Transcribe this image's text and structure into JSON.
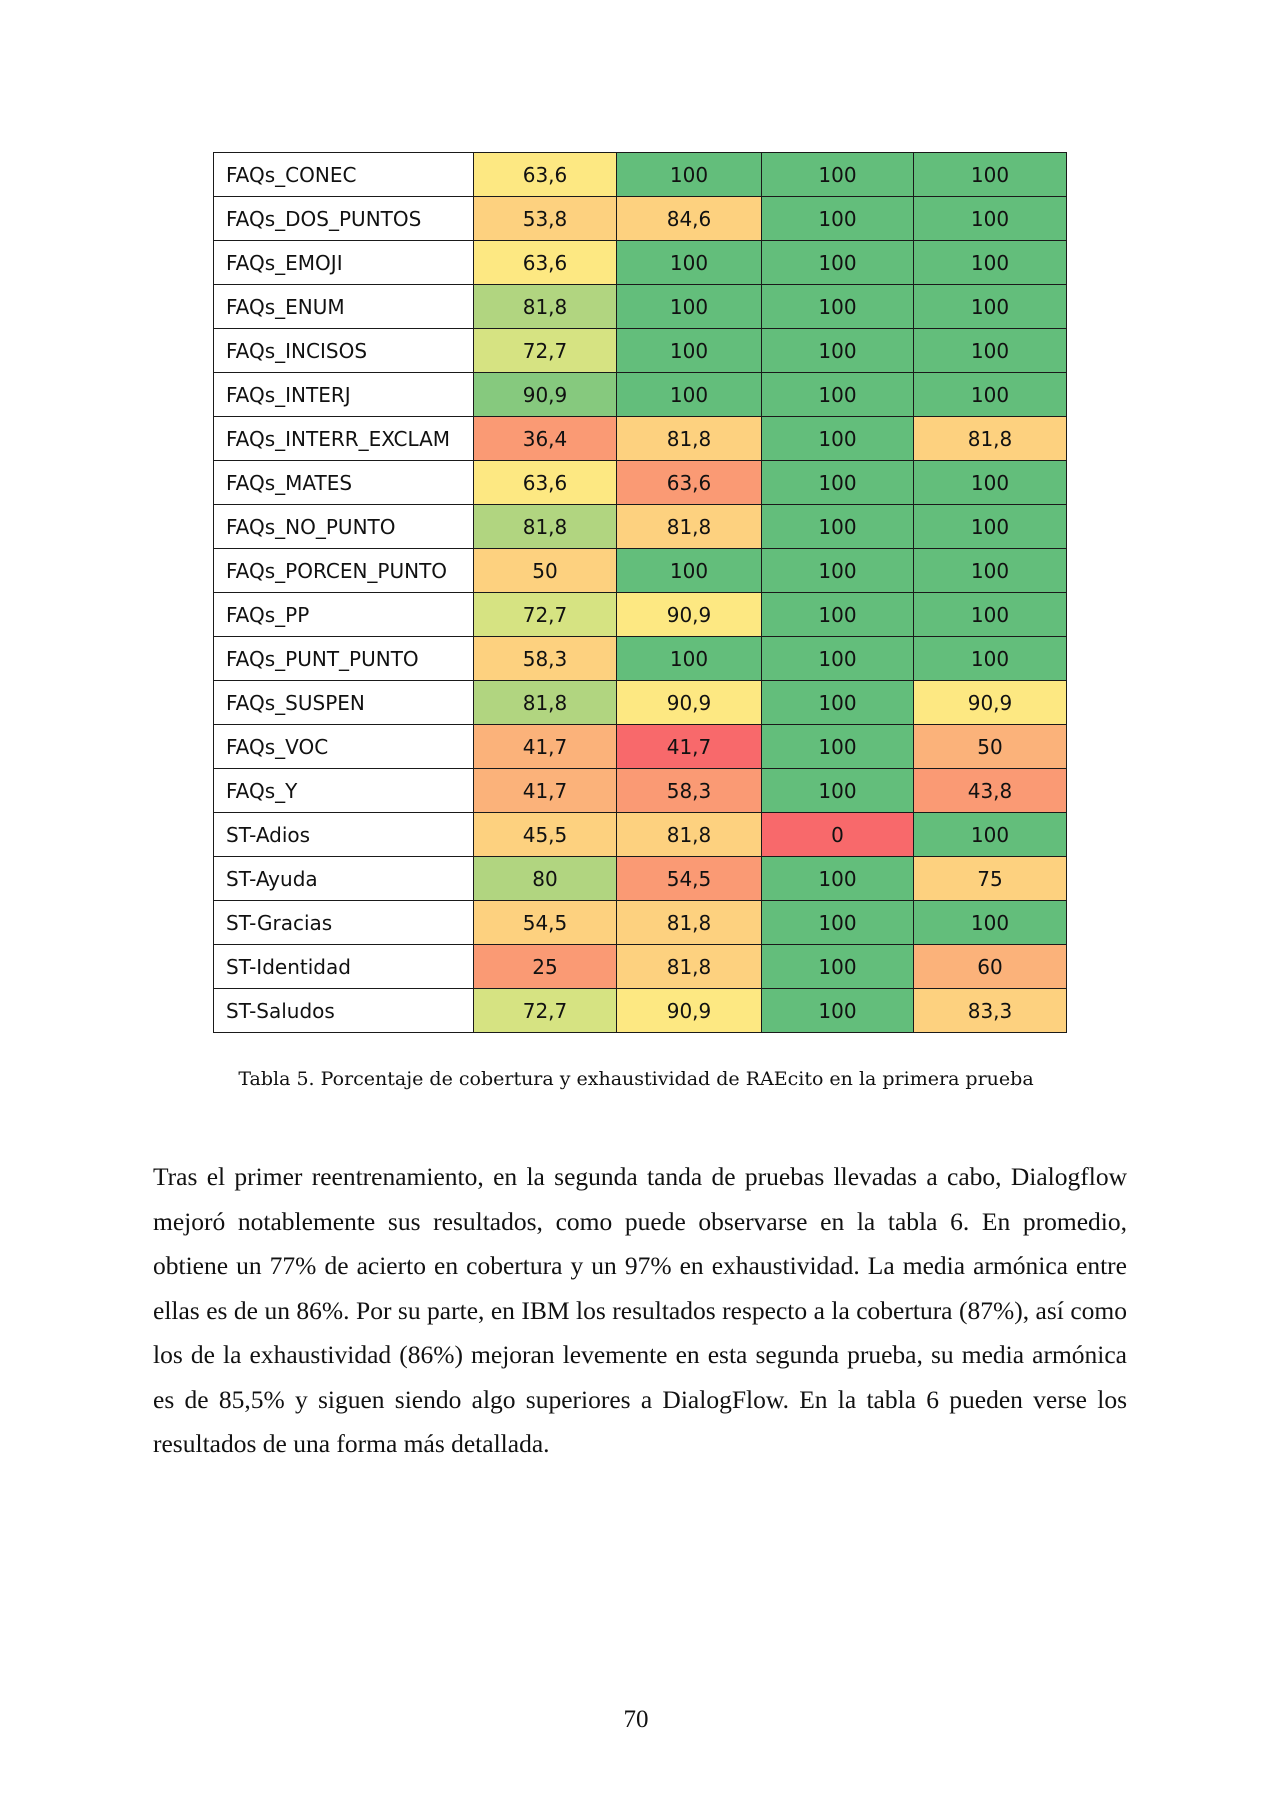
{
  "table": {
    "rows": [
      {
        "label": "FAQs_CONEC",
        "values": [
          "63,6",
          "100",
          "100",
          "100"
        ]
      },
      {
        "label": "FAQs_DOS_PUNTOS",
        "values": [
          "53,8",
          "84,6",
          "100",
          "100"
        ]
      },
      {
        "label": "FAQs_EMOJI",
        "values": [
          "63,6",
          "100",
          "100",
          "100"
        ]
      },
      {
        "label": "FAQs_ENUM",
        "values": [
          "81,8",
          "100",
          "100",
          "100"
        ]
      },
      {
        "label": "FAQs_INCISOS",
        "values": [
          "72,7",
          "100",
          "100",
          "100"
        ]
      },
      {
        "label": "FAQs_INTERJ",
        "values": [
          "90,9",
          "100",
          "100",
          "100"
        ]
      },
      {
        "label": "FAQs_INTERR_EXCLAM",
        "values": [
          "36,4",
          "81,8",
          "100",
          "81,8"
        ]
      },
      {
        "label": "FAQs_MATES",
        "values": [
          "63,6",
          "63,6",
          "100",
          "100"
        ]
      },
      {
        "label": "FAQs_NO_PUNTO",
        "values": [
          "81,8",
          "81,8",
          "100",
          "100"
        ]
      },
      {
        "label": "FAQs_PORCEN_PUNTO",
        "values": [
          "50",
          "100",
          "100",
          "100"
        ]
      },
      {
        "label": "FAQs_PP",
        "values": [
          "72,7",
          "90,9",
          "100",
          "100"
        ]
      },
      {
        "label": "FAQs_PUNT_PUNTO",
        "values": [
          "58,3",
          "100",
          "100",
          "100"
        ]
      },
      {
        "label": "FAQs_SUSPEN",
        "values": [
          "81,8",
          "90,9",
          "100",
          "90,9"
        ]
      },
      {
        "label": "FAQs_VOC",
        "values": [
          "41,7",
          "41,7",
          "100",
          "50"
        ]
      },
      {
        "label": "FAQs_Y",
        "values": [
          "41,7",
          "58,3",
          "100",
          "43,8"
        ]
      },
      {
        "label": "ST-Adios",
        "values": [
          "45,5",
          "81,8",
          "0",
          "100"
        ]
      },
      {
        "label": "ST-Ayuda",
        "values": [
          "80",
          "54,5",
          "100",
          "75"
        ]
      },
      {
        "label": "ST-Gracias",
        "values": [
          "54,5",
          "81,8",
          "100",
          "100"
        ]
      },
      {
        "label": "ST-Identidad",
        "values": [
          "25",
          "81,8",
          "100",
          "60"
        ]
      },
      {
        "label": "ST-Saludos",
        "values": [
          "72,7",
          "90,9",
          "100",
          "83,3"
        ]
      }
    ],
    "colors": {
      "green": "#63be7b",
      "mid_green": "#86c97e",
      "light_green": "#b1d580",
      "yellow_green": "#d6e382",
      "yellow": "#fde882",
      "light_orange": "#fdd17f",
      "orange": "#fbb27a",
      "salmon": "#fa9a74",
      "red": "#f8696b"
    }
  },
  "caption": "Tabla 5. Porcentaje de cobertura y exhaustividad de RAEcito en la primera prueba",
  "paragraph": "Tras el primer reentrenamiento, en la segunda tanda de pruebas llevadas a cabo, Dialogflow mejoró notablemente sus resultados, como puede observarse en la tabla 6. En promedio, obtiene un 77% de acierto en cobertura y un 97% en exhaustividad. La media armónica entre ellas es de un 86%. Por su parte, en IBM los resultados respecto a la cobertura (87%), así como los de la exhaustividad (86%) mejoran levemente en esta segunda prueba, su media armónica es de 85,5% y siguen siendo algo superiores a DialogFlow. En la tabla 6 pueden verse los resultados de una forma más detallada.",
  "page_number": "70"
}
